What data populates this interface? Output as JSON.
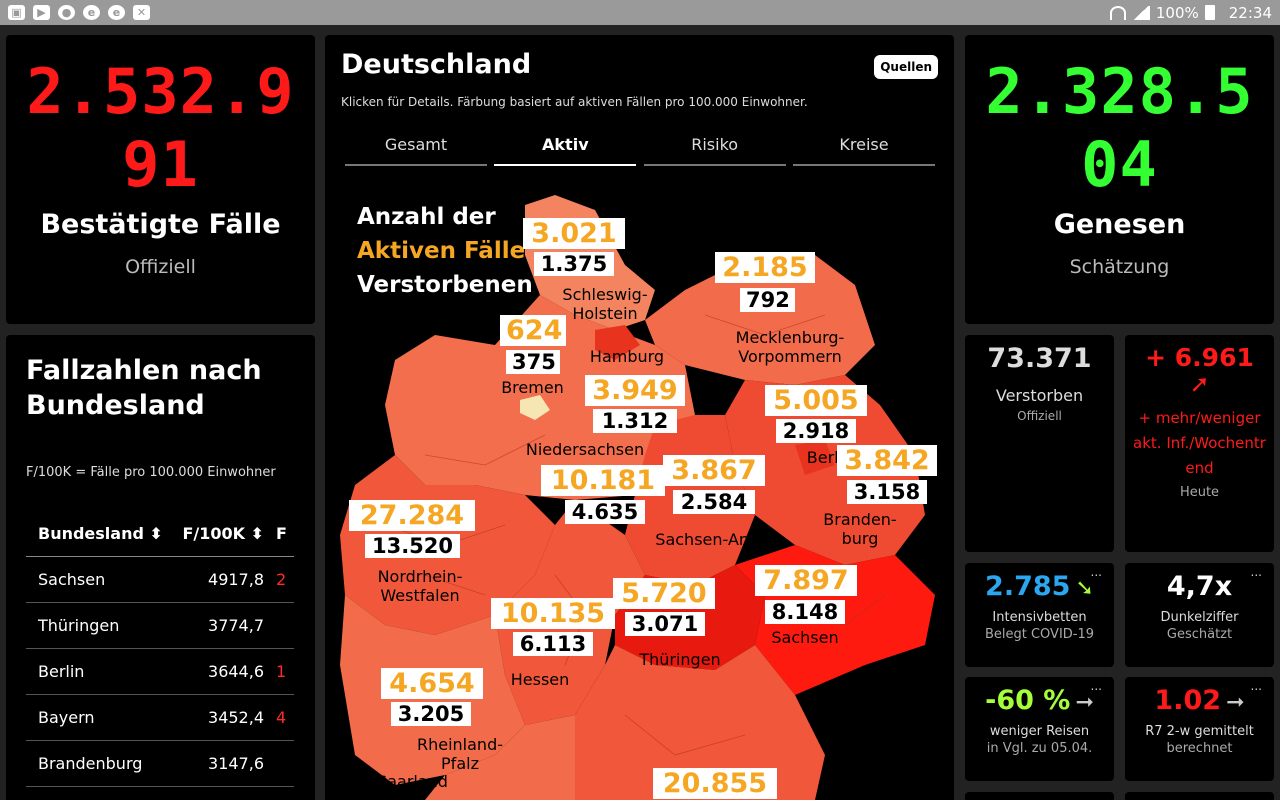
{
  "statusbar": {
    "battery": "100%",
    "time": "22:34"
  },
  "left_card": {
    "number_line1": "2.532.9",
    "number_line2": "91",
    "title": "Bestätigte Fälle",
    "subtitle": "Offiziell"
  },
  "table_card": {
    "title_line1": "Fallzahlen nach",
    "title_line2": "Bundesland",
    "note": "F/100K = Fälle pro 100.000 Einwohner",
    "headers": [
      "Bundesland",
      "F/100K",
      "F"
    ],
    "rows": [
      {
        "name": "Sachsen",
        "value": "4917,8",
        "extra": "2"
      },
      {
        "name": "Thüringen",
        "value": "3774,7",
        "extra": ""
      },
      {
        "name": "Berlin",
        "value": "3644,6",
        "extra": "1"
      },
      {
        "name": "Bayern",
        "value": "3452,4",
        "extra": "4"
      },
      {
        "name": "Brandenburg",
        "value": "3147,6",
        "extra": ""
      }
    ]
  },
  "center": {
    "title": "Deutschland",
    "subtitle": "Klicken für Details. Färbung basiert auf aktiven Fällen pro 100.000 Einwohner.",
    "sources_button": "Quellen",
    "tabs": [
      "Gesamt",
      "Aktiv",
      "Risiko",
      "Kreise"
    ],
    "active_tab": "Aktiv",
    "legend_line1": "Anzahl der",
    "legend_line2": "Aktiven Fälle",
    "legend_line3": "Verstorbenen",
    "states": [
      {
        "name": "Schleswig-\nHolstein",
        "active": "3.021",
        "deaths": "1.375"
      },
      {
        "name": "Mecklenburg-\nVorpommern",
        "active": "2.185",
        "deaths": "792"
      },
      {
        "name": "Hamburg",
        "active": "",
        "deaths": ""
      },
      {
        "name": "Bremen",
        "active": "624",
        "deaths": "375"
      },
      {
        "name": "Niedersachsen",
        "active": "3.949",
        "deaths": "1.312"
      },
      {
        "name": "Berlin",
        "active": "5.005",
        "deaths": "2.918"
      },
      {
        "name": "Branden-\nburg",
        "active": "3.842",
        "deaths": "3.158"
      },
      {
        "name": "Sachsen-Anhalt",
        "active": "3.867",
        "deaths": "2.584"
      },
      {
        "name": "",
        "active": "10.181",
        "deaths": "4.635"
      },
      {
        "name": "Nordrhein-\nWestfalen",
        "active": "27.284",
        "deaths": "13.520"
      },
      {
        "name": "Sachsen",
        "active": "7.897",
        "deaths": "8.148"
      },
      {
        "name": "Thüringen",
        "active": "5.720",
        "deaths": "3.071"
      },
      {
        "name": "Hessen",
        "active": "10.135",
        "deaths": "6.113"
      },
      {
        "name": "Rheinland-\nPfalz",
        "active": "4.654",
        "deaths": "3.205"
      },
      {
        "name": "Saarland",
        "active": "",
        "deaths": ""
      },
      {
        "name": "",
        "active": "20.855",
        "deaths": ""
      }
    ]
  },
  "right_card": {
    "number_line1": "2.328.5",
    "number_line2": "04",
    "title": "Genesen",
    "subtitle": "Schätzung"
  },
  "deaths_card": {
    "value": "73.371",
    "label": "Verstorben",
    "sub": "Offiziell"
  },
  "trend_card": {
    "value": "+ 6.961",
    "text": "+ mehr/weniger akt. Inf./Wochentrend",
    "sub": "Heute"
  },
  "icu_card": {
    "value": "2.785",
    "label": "Intensivbetten",
    "sub": "Belegt COVID-19",
    "more": "..."
  },
  "dark_card": {
    "value": "4,7x",
    "label": "Dunkelziffer",
    "sub": "Geschätzt",
    "more": "..."
  },
  "travel_card": {
    "value": "-60 %",
    "label": "weniger Reisen",
    "sub": "in Vgl. zu 05.04.",
    "more": "..."
  },
  "r_card": {
    "value": "1.02",
    "label": "R7 2-w gemittelt",
    "sub": "berechnet",
    "more": "..."
  },
  "colors": {
    "confirmed": "#ff1a1a",
    "recovered": "#33ff33",
    "active_label": "#f5a623",
    "icu": "#2aa7f0",
    "travel": "#a4ff3a"
  }
}
